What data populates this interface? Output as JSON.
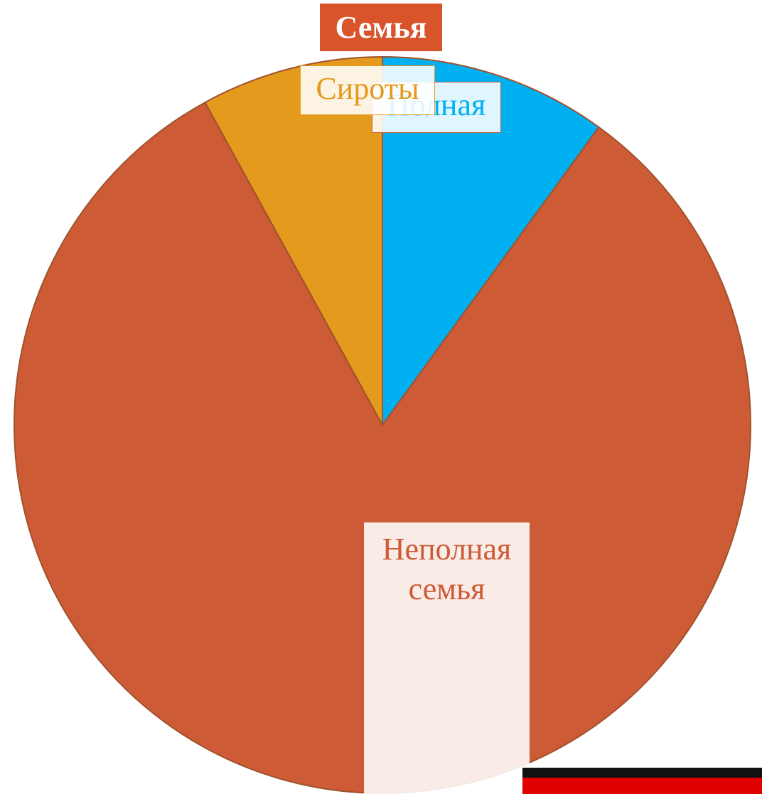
{
  "chart_data": {
    "type": "pie",
    "title": "Семья",
    "categories": [
      "Полная",
      "Неполная семья",
      "Сироты"
    ],
    "values": [
      10,
      82,
      8
    ],
    "colors": [
      "#00b0f0",
      "#cd5b36",
      "#e49a1c"
    ]
  }
}
